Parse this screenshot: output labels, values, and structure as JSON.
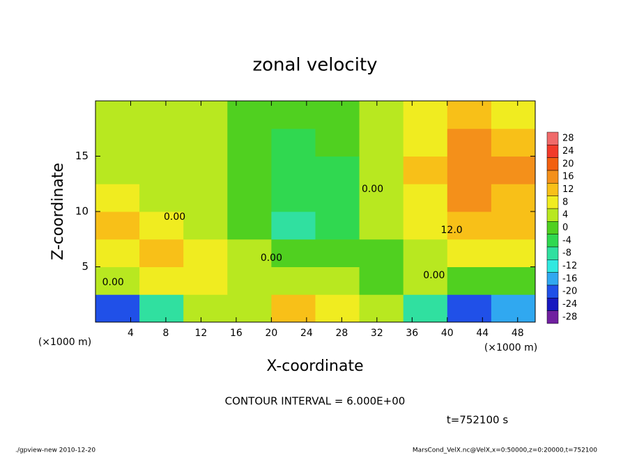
{
  "chart_data": {
    "type": "heatmap",
    "title": "zonal velocity",
    "xlabel": "X-coordinate",
    "ylabel": "Z-coordinate",
    "x_unit_labels": [
      "(×1000 m)",
      "(×1000 m)"
    ],
    "xlim": [
      0,
      50
    ],
    "ylim": [
      0,
      20
    ],
    "xticks": [
      4,
      8,
      12,
      16,
      20,
      24,
      28,
      32,
      36,
      40,
      44,
      48
    ],
    "yticks": [
      5,
      10,
      15
    ],
    "x": [
      0,
      5,
      10,
      15,
      20,
      25,
      30,
      35,
      40,
      45,
      50
    ],
    "y": [
      0,
      2.5,
      5,
      7.5,
      10,
      12.5,
      15,
      17.5,
      20
    ],
    "z": [
      [
        -20,
        -8,
        2,
        4,
        12,
        8,
        2,
        -8,
        -20,
        -18
      ],
      [
        4,
        8,
        6,
        4,
        2,
        2,
        0,
        2,
        -2,
        -2
      ],
      [
        8,
        10,
        6,
        2,
        0,
        -2,
        0,
        4,
        6,
        6
      ],
      [
        10,
        6,
        4,
        0,
        -8,
        -6,
        2,
        6,
        10,
        12
      ],
      [
        6,
        4,
        2,
        0,
        -6,
        -4,
        2,
        8,
        14,
        12
      ],
      [
        4,
        2,
        2,
        -2,
        -6,
        -4,
        2,
        10,
        16,
        14
      ],
      [
        4,
        2,
        2,
        -2,
        -4,
        -2,
        2,
        8,
        14,
        10
      ],
      [
        4,
        2,
        2,
        0,
        -2,
        0,
        4,
        8,
        12,
        8
      ]
    ],
    "colorbar": {
      "levels": [
        28,
        24,
        20,
        16,
        12,
        8,
        4,
        0,
        -4,
        -8,
        -12,
        -16,
        -20,
        -24,
        -28
      ],
      "colors": [
        "#f06a6a",
        "#f23a2a",
        "#f26010",
        "#f4901a",
        "#f8c018",
        "#f0ec20",
        "#b8e820",
        "#50d020",
        "#30d850",
        "#30e0a0",
        "#30e8e0",
        "#30a8f0",
        "#2050e8",
        "#1818c0",
        "#7020a0"
      ]
    },
    "contour_labels": [
      {
        "text": "0.00",
        "x": 20,
        "y": 5.8
      },
      {
        "text": "0.00",
        "x": 9,
        "y": 9.5
      },
      {
        "text": "0.00",
        "x": 31.5,
        "y": 12
      },
      {
        "text": "0.00",
        "x": 38.5,
        "y": 4.2
      },
      {
        "text": "12.0",
        "x": 40.5,
        "y": 8.3
      },
      {
        "text": "0.00",
        "x": 2,
        "y": 3.6
      }
    ],
    "contour_interval": "CONTOUR INTERVAL = 6.000E+00",
    "time_label": "t=752100 s",
    "footer_left": "./gpview-new  2010-12-20",
    "footer_right": "MarsCond_VelX.nc@VelX,x=0:50000,z=0:20000,t=752100"
  }
}
